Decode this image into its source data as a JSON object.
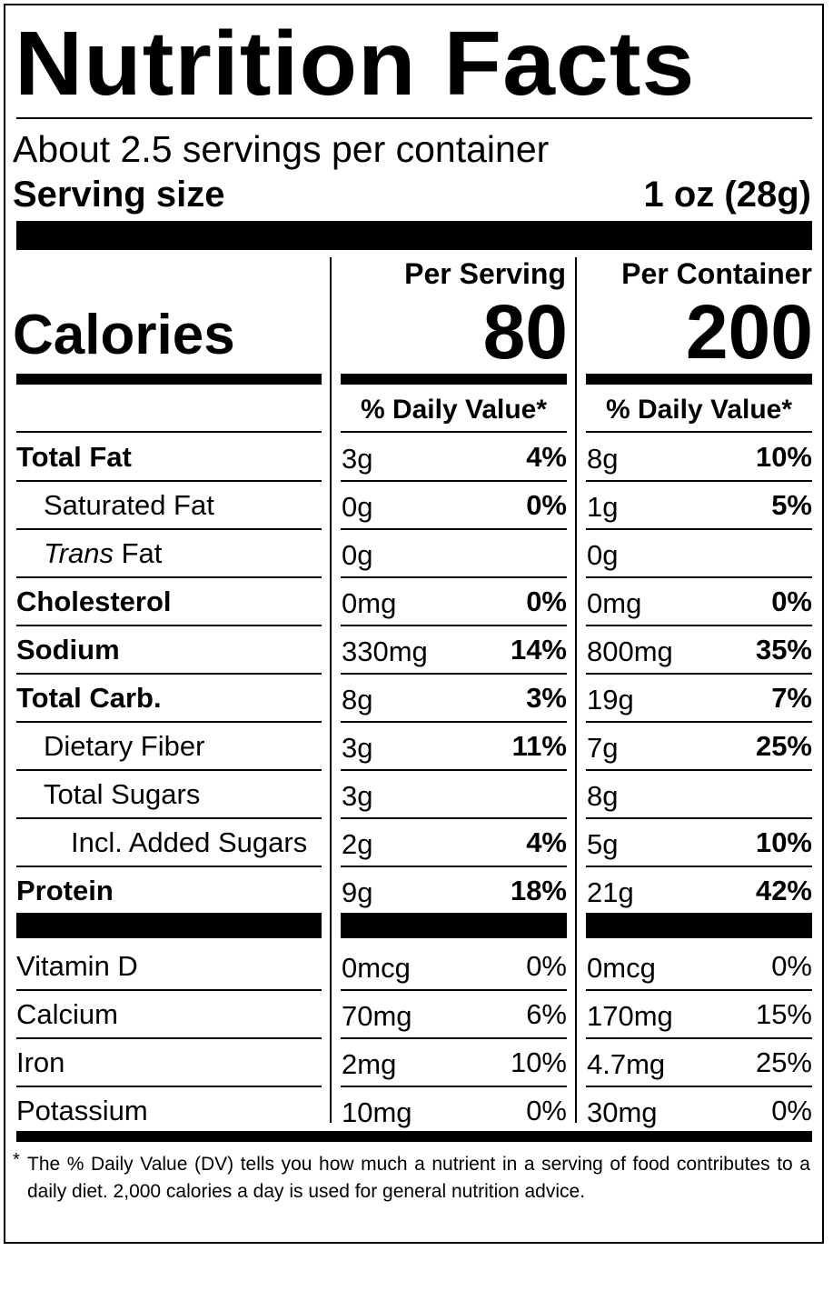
{
  "title": "Nutrition Facts",
  "servings_per_container": "About 2.5 servings per container",
  "serving_size_label": "Serving size",
  "serving_size_value": "1 oz (28g)",
  "columns": {
    "per_serving": "Per Serving",
    "per_container": "Per Container"
  },
  "calories_label": "Calories",
  "calories_per_serving": "80",
  "calories_per_container": "200",
  "daily_value_header": "% Daily Value*",
  "nutrients": [
    {
      "name": "Total Fat",
      "bold": true,
      "indent": 0,
      "serv_amt": "3g",
      "serv_pct": "4%",
      "cont_amt": "8g",
      "cont_pct": "10%"
    },
    {
      "name": "Saturated Fat",
      "bold": false,
      "indent": 1,
      "serv_amt": "0g",
      "serv_pct": "0%",
      "cont_amt": "1g",
      "cont_pct": "5%"
    },
    {
      "name_italic": "Trans",
      "name": " Fat",
      "bold": false,
      "indent": 1,
      "serv_amt": "0g",
      "serv_pct": "",
      "cont_amt": "0g",
      "cont_pct": ""
    },
    {
      "name": "Cholesterol",
      "bold": true,
      "indent": 0,
      "serv_amt": "0mg",
      "serv_pct": "0%",
      "cont_amt": "0mg",
      "cont_pct": "0%"
    },
    {
      "name": "Sodium",
      "bold": true,
      "indent": 0,
      "serv_amt": "330mg",
      "serv_pct": "14%",
      "cont_amt": "800mg",
      "cont_pct": "35%"
    },
    {
      "name": "Total Carb.",
      "bold": true,
      "indent": 0,
      "serv_amt": "8g",
      "serv_pct": "3%",
      "cont_amt": "19g",
      "cont_pct": "7%"
    },
    {
      "name": "Dietary Fiber",
      "bold": false,
      "indent": 1,
      "serv_amt": "3g",
      "serv_pct": "11%",
      "cont_amt": "7g",
      "cont_pct": "25%"
    },
    {
      "name": "Total Sugars",
      "bold": false,
      "indent": 1,
      "serv_amt": "3g",
      "serv_pct": "",
      "cont_amt": "8g",
      "cont_pct": ""
    },
    {
      "name": "Incl. Added Sugars",
      "bold": false,
      "indent": 2,
      "serv_amt": "2g",
      "serv_pct": "4%",
      "cont_amt": "5g",
      "cont_pct": "10%"
    },
    {
      "name": "Protein",
      "bold": true,
      "indent": 0,
      "serv_amt": "9g",
      "serv_pct": "18%",
      "cont_amt": "21g",
      "cont_pct": "42%"
    }
  ],
  "vitamins": [
    {
      "name": "Vitamin D",
      "serv_amt": "0mcg",
      "serv_pct": "0%",
      "cont_amt": "0mcg",
      "cont_pct": "0%"
    },
    {
      "name": "Calcium",
      "serv_amt": "70mg",
      "serv_pct": "6%",
      "cont_amt": "170mg",
      "cont_pct": "15%"
    },
    {
      "name": "Iron",
      "serv_amt": "2mg",
      "serv_pct": "10%",
      "cont_amt": "4.7mg",
      "cont_pct": "25%"
    },
    {
      "name": "Potassium",
      "serv_amt": "10mg",
      "serv_pct": "0%",
      "cont_amt": "30mg",
      "cont_pct": "0%"
    }
  ],
  "footnote_star": "*",
  "footnote": "The % Daily Value (DV) tells you how much a nutrient in a serving of food contributes to a daily diet. 2,000 calories a day is used for general nutrition advice."
}
